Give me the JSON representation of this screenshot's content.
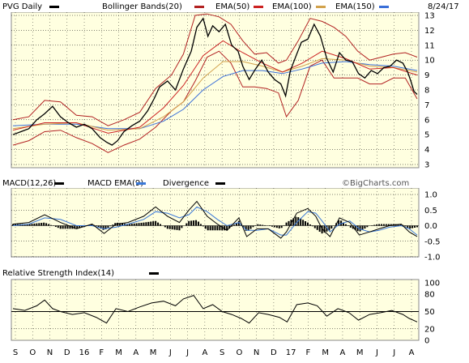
{
  "header": {
    "symbol_label": "PVG Daily",
    "bb_label": "Bollinger Bands(20)",
    "ema50_label": "EMA(50)",
    "ema100_label": "EMA(100)",
    "ema150_label": "EMA(150)",
    "date": "8/24/17"
  },
  "macd_header": {
    "macd_label": "MACD(12,26)",
    "signal_label": "MACD EMA(9)",
    "div_label": "Divergence",
    "watermark": "©BigCharts.com"
  },
  "rsi_header": {
    "rsi_label": "Relative Strength Index(14)"
  },
  "colors": {
    "panel_bg": "#ffffe0",
    "price": "#000000",
    "bollinger": "#b22222",
    "ema50": "#cc2222",
    "ema100": "#d2a24c",
    "ema150": "#3a6fd8",
    "macd": "#000000",
    "macd_signal": "#3a78d8",
    "divergence": "#000000"
  },
  "chart_data": [
    {
      "type": "line",
      "panel": "price",
      "y_ticks": [
        "3",
        "4",
        "5",
        "6",
        "7",
        "8",
        "9",
        "10",
        "11",
        "12",
        "13"
      ],
      "ylim": [
        3,
        13
      ],
      "x_ticks": [
        "S",
        "O",
        "N",
        "D",
        "16",
        "F",
        "M",
        "A",
        "M",
        "J",
        "J",
        "A",
        "S",
        "O",
        "N",
        "D",
        "17",
        "F",
        "M",
        "A",
        "M",
        "J",
        "J",
        "A"
      ],
      "price_path": [
        [
          0,
          5.0
        ],
        [
          10,
          5.2
        ],
        [
          20,
          5.4
        ],
        [
          30,
          6.0
        ],
        [
          40,
          6.4
        ],
        [
          50,
          6.9
        ],
        [
          60,
          6.2
        ],
        [
          70,
          5.8
        ],
        [
          80,
          5.5
        ],
        [
          90,
          5.7
        ],
        [
          100,
          5.4
        ],
        [
          110,
          4.8
        ],
        [
          118,
          4.5
        ],
        [
          125,
          4.3
        ],
        [
          132,
          4.6
        ],
        [
          140,
          5.2
        ],
        [
          150,
          5.6
        ],
        [
          160,
          5.9
        ],
        [
          170,
          6.6
        ],
        [
          178,
          7.4
        ],
        [
          185,
          8.2
        ],
        [
          195,
          8.6
        ],
        [
          205,
          8.0
        ],
        [
          215,
          9.4
        ],
        [
          225,
          10.6
        ],
        [
          232,
          12.2
        ],
        [
          240,
          12.8
        ],
        [
          246,
          11.6
        ],
        [
          252,
          12.3
        ],
        [
          260,
          11.9
        ],
        [
          268,
          12.4
        ],
        [
          276,
          11.0
        ],
        [
          284,
          10.6
        ],
        [
          290,
          9.6
        ],
        [
          298,
          8.7
        ],
        [
          306,
          9.4
        ],
        [
          314,
          10.0
        ],
        [
          322,
          9.2
        ],
        [
          330,
          8.7
        ],
        [
          338,
          8.4
        ],
        [
          344,
          7.6
        ],
        [
          350,
          9.3
        ],
        [
          358,
          10.4
        ],
        [
          364,
          11.2
        ],
        [
          372,
          11.4
        ],
        [
          380,
          12.4
        ],
        [
          388,
          11.6
        ],
        [
          396,
          10.1
        ],
        [
          404,
          9.2
        ],
        [
          412,
          10.5
        ],
        [
          420,
          10.0
        ],
        [
          428,
          9.9
        ],
        [
          436,
          9.1
        ],
        [
          444,
          8.8
        ],
        [
          452,
          9.3
        ],
        [
          460,
          9.1
        ],
        [
          468,
          9.5
        ],
        [
          476,
          9.6
        ],
        [
          484,
          10.0
        ],
        [
          492,
          9.8
        ],
        [
          498,
          9.2
        ],
        [
          502,
          8.6
        ],
        [
          506,
          7.9
        ],
        [
          510,
          7.7
        ]
      ],
      "bollinger_upper": [
        [
          0,
          6.0
        ],
        [
          20,
          6.2
        ],
        [
          40,
          7.3
        ],
        [
          60,
          7.2
        ],
        [
          80,
          6.3
        ],
        [
          100,
          6.2
        ],
        [
          120,
          5.6
        ],
        [
          140,
          6.0
        ],
        [
          160,
          6.5
        ],
        [
          180,
          8.1
        ],
        [
          200,
          9.0
        ],
        [
          215,
          10.4
        ],
        [
          230,
          13.0
        ],
        [
          245,
          13.1
        ],
        [
          260,
          12.9
        ],
        [
          275,
          12.4
        ],
        [
          290,
          11.3
        ],
        [
          305,
          10.4
        ],
        [
          320,
          10.5
        ],
        [
          335,
          9.8
        ],
        [
          345,
          10.0
        ],
        [
          360,
          11.3
        ],
        [
          375,
          12.8
        ],
        [
          390,
          12.6
        ],
        [
          405,
          12.2
        ],
        [
          420,
          11.6
        ],
        [
          435,
          10.6
        ],
        [
          450,
          10.0
        ],
        [
          465,
          10.2
        ],
        [
          480,
          10.4
        ],
        [
          495,
          10.5
        ],
        [
          510,
          10.2
        ]
      ],
      "bollinger_lower": [
        [
          0,
          4.3
        ],
        [
          20,
          4.6
        ],
        [
          40,
          5.2
        ],
        [
          60,
          5.3
        ],
        [
          80,
          4.8
        ],
        [
          100,
          4.4
        ],
        [
          120,
          3.8
        ],
        [
          140,
          4.3
        ],
        [
          160,
          4.7
        ],
        [
          180,
          5.5
        ],
        [
          200,
          6.6
        ],
        [
          215,
          7.2
        ],
        [
          230,
          8.6
        ],
        [
          245,
          10.2
        ],
        [
          260,
          10.6
        ],
        [
          275,
          9.8
        ],
        [
          290,
          8.2
        ],
        [
          305,
          8.2
        ],
        [
          320,
          8.1
        ],
        [
          335,
          7.8
        ],
        [
          345,
          6.2
        ],
        [
          360,
          7.3
        ],
        [
          375,
          9.6
        ],
        [
          390,
          10.0
        ],
        [
          405,
          8.8
        ],
        [
          420,
          8.8
        ],
        [
          435,
          8.8
        ],
        [
          450,
          8.4
        ],
        [
          465,
          8.4
        ],
        [
          480,
          8.8
        ],
        [
          495,
          8.8
        ],
        [
          510,
          7.4
        ]
      ],
      "ema50": [
        [
          0,
          5.3
        ],
        [
          40,
          5.8
        ],
        [
          80,
          5.8
        ],
        [
          120,
          5.1
        ],
        [
          160,
          5.5
        ],
        [
          190,
          6.8
        ],
        [
          215,
          8.3
        ],
        [
          240,
          10.3
        ],
        [
          265,
          11.3
        ],
        [
          290,
          10.5
        ],
        [
          315,
          9.8
        ],
        [
          340,
          9.2
        ],
        [
          365,
          9.8
        ],
        [
          390,
          10.6
        ],
        [
          420,
          10.1
        ],
        [
          450,
          9.4
        ],
        [
          480,
          9.5
        ],
        [
          510,
          9.0
        ]
      ],
      "ema100": [
        [
          0,
          5.4
        ],
        [
          40,
          5.7
        ],
        [
          80,
          5.8
        ],
        [
          120,
          5.3
        ],
        [
          160,
          5.4
        ],
        [
          190,
          6.2
        ],
        [
          215,
          7.2
        ],
        [
          240,
          8.8
        ],
        [
          265,
          9.9
        ],
        [
          290,
          9.9
        ],
        [
          315,
          9.6
        ],
        [
          340,
          9.2
        ],
        [
          365,
          9.6
        ],
        [
          390,
          10.1
        ],
        [
          420,
          10.0
        ],
        [
          450,
          9.6
        ],
        [
          480,
          9.5
        ],
        [
          510,
          9.2
        ]
      ],
      "ema150": [
        [
          0,
          5.6
        ],
        [
          40,
          5.7
        ],
        [
          80,
          5.7
        ],
        [
          120,
          5.4
        ],
        [
          160,
          5.4
        ],
        [
          190,
          5.9
        ],
        [
          215,
          6.7
        ],
        [
          240,
          8.0
        ],
        [
          265,
          8.9
        ],
        [
          290,
          9.3
        ],
        [
          315,
          9.3
        ],
        [
          340,
          9.1
        ],
        [
          365,
          9.4
        ],
        [
          390,
          9.8
        ],
        [
          420,
          9.9
        ],
        [
          450,
          9.7
        ],
        [
          480,
          9.6
        ],
        [
          510,
          9.3
        ]
      ]
    },
    {
      "type": "line",
      "panel": "macd",
      "y_ticks": [
        "1.0",
        "0.5",
        "0.0",
        "-0.5",
        "-1.0"
      ],
      "ylim": [
        -1.0,
        1.0
      ],
      "macd": [
        [
          0,
          0.05
        ],
        [
          20,
          0.1
        ],
        [
          40,
          0.35
        ],
        [
          60,
          0.1
        ],
        [
          80,
          -0.1
        ],
        [
          100,
          0.05
        ],
        [
          115,
          -0.25
        ],
        [
          130,
          0.05
        ],
        [
          145,
          0.1
        ],
        [
          165,
          0.3
        ],
        [
          180,
          0.6
        ],
        [
          195,
          0.3
        ],
        [
          210,
          0.1
        ],
        [
          222,
          0.5
        ],
        [
          232,
          0.78
        ],
        [
          245,
          0.3
        ],
        [
          258,
          0.05
        ],
        [
          270,
          -0.15
        ],
        [
          285,
          0.25
        ],
        [
          295,
          -0.35
        ],
        [
          308,
          -0.1
        ],
        [
          322,
          -0.1
        ],
        [
          338,
          -0.4
        ],
        [
          345,
          -0.2
        ],
        [
          358,
          0.4
        ],
        [
          372,
          0.55
        ],
        [
          382,
          0.3
        ],
        [
          390,
          -0.1
        ],
        [
          400,
          -0.35
        ],
        [
          412,
          0.25
        ],
        [
          425,
          0.1
        ],
        [
          437,
          -0.3
        ],
        [
          450,
          -0.2
        ],
        [
          462,
          -0.1
        ],
        [
          475,
          0.0
        ],
        [
          490,
          0.05
        ],
        [
          500,
          -0.2
        ],
        [
          510,
          -0.35
        ]
      ],
      "signal": [
        [
          0,
          0.0
        ],
        [
          20,
          0.05
        ],
        [
          40,
          0.25
        ],
        [
          60,
          0.2
        ],
        [
          80,
          0.0
        ],
        [
          100,
          0.0
        ],
        [
          115,
          -0.1
        ],
        [
          130,
          -0.05
        ],
        [
          145,
          0.05
        ],
        [
          165,
          0.2
        ],
        [
          180,
          0.45
        ],
        [
          195,
          0.4
        ],
        [
          210,
          0.25
        ],
        [
          222,
          0.35
        ],
        [
          232,
          0.6
        ],
        [
          245,
          0.45
        ],
        [
          258,
          0.2
        ],
        [
          270,
          0.0
        ],
        [
          285,
          0.1
        ],
        [
          295,
          -0.15
        ],
        [
          308,
          -0.15
        ],
        [
          322,
          -0.1
        ],
        [
          338,
          -0.3
        ],
        [
          345,
          -0.3
        ],
        [
          358,
          0.1
        ],
        [
          372,
          0.45
        ],
        [
          382,
          0.4
        ],
        [
          390,
          0.15
        ],
        [
          400,
          -0.2
        ],
        [
          412,
          0.05
        ],
        [
          425,
          0.15
        ],
        [
          437,
          -0.1
        ],
        [
          450,
          -0.2
        ],
        [
          462,
          -0.15
        ],
        [
          475,
          -0.05
        ],
        [
          490,
          0.0
        ],
        [
          500,
          -0.1
        ],
        [
          510,
          -0.3
        ]
      ]
    },
    {
      "type": "line",
      "panel": "rsi",
      "y_ticks": [
        "100",
        "80",
        "50",
        "20",
        "0"
      ],
      "ylim": [
        0,
        100
      ],
      "reference_line": 50,
      "rsi": [
        [
          0,
          55
        ],
        [
          15,
          52
        ],
        [
          30,
          60
        ],
        [
          40,
          70
        ],
        [
          50,
          55
        ],
        [
          60,
          50
        ],
        [
          75,
          45
        ],
        [
          90,
          48
        ],
        [
          105,
          40
        ],
        [
          118,
          30
        ],
        [
          130,
          55
        ],
        [
          145,
          50
        ],
        [
          160,
          58
        ],
        [
          175,
          65
        ],
        [
          190,
          68
        ],
        [
          205,
          60
        ],
        [
          215,
          72
        ],
        [
          228,
          78
        ],
        [
          240,
          55
        ],
        [
          252,
          62
        ],
        [
          264,
          50
        ],
        [
          276,
          45
        ],
        [
          288,
          38
        ],
        [
          298,
          30
        ],
        [
          310,
          48
        ],
        [
          322,
          45
        ],
        [
          336,
          40
        ],
        [
          346,
          32
        ],
        [
          358,
          62
        ],
        [
          372,
          65
        ],
        [
          384,
          60
        ],
        [
          396,
          42
        ],
        [
          410,
          55
        ],
        [
          424,
          48
        ],
        [
          436,
          35
        ],
        [
          450,
          45
        ],
        [
          464,
          48
        ],
        [
          478,
          52
        ],
        [
          492,
          45
        ],
        [
          500,
          38
        ],
        [
          510,
          32
        ]
      ]
    }
  ]
}
